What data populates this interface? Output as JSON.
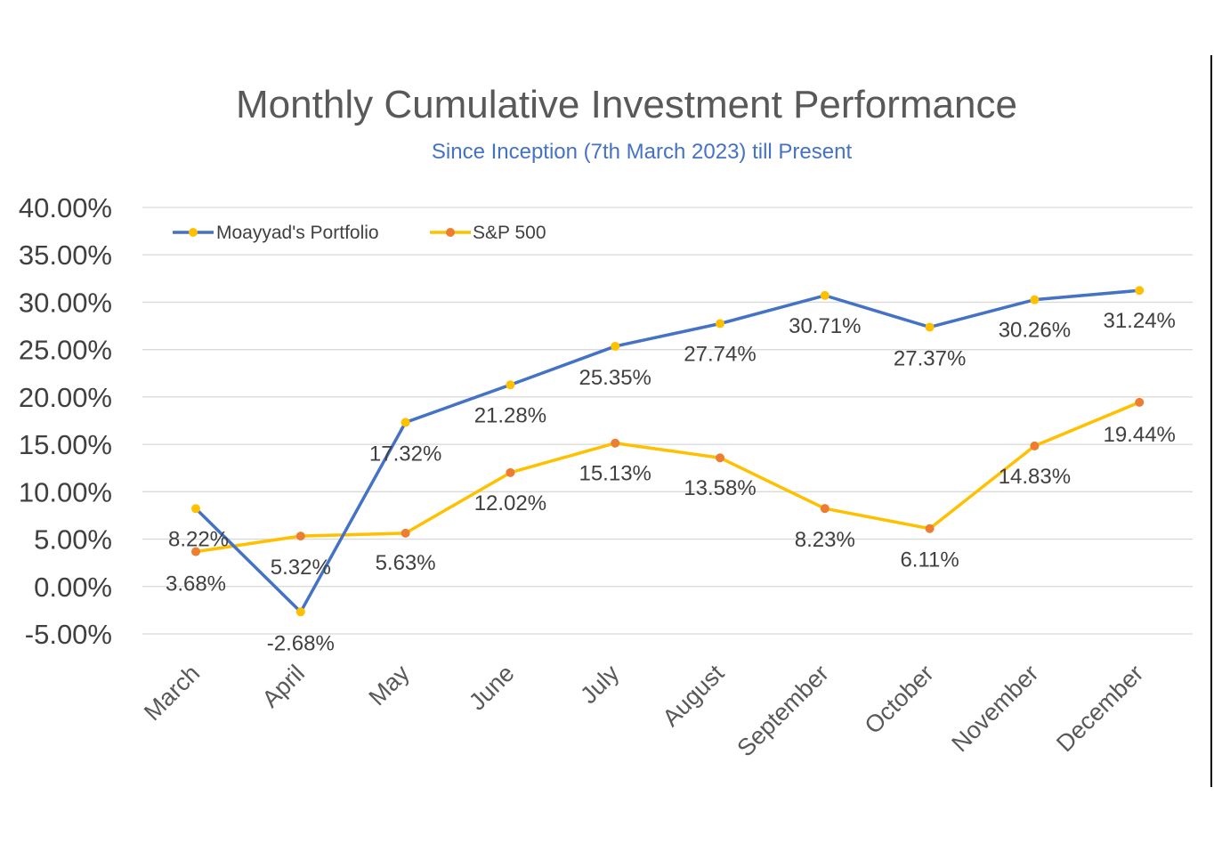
{
  "chart_data": {
    "type": "line",
    "title": "Monthly Cumulative Investment Performance",
    "subtitle": "Since Inception (7th March 2023) till Present",
    "categories": [
      "March",
      "April",
      "May",
      "June",
      "July",
      "August",
      "September",
      "October",
      "November",
      "December"
    ],
    "series": [
      {
        "name": "Moayyad's Portfolio",
        "values": [
          8.22,
          -2.68,
          17.32,
          21.28,
          25.35,
          27.74,
          30.71,
          27.37,
          30.26,
          31.24
        ],
        "labels": [
          "8.22%",
          "-2.68%",
          "17.32%",
          "21.28%",
          "25.35%",
          "27.74%",
          "30.71%",
          "27.37%",
          "30.26%",
          "31.24%"
        ],
        "line_color": "#4472C4",
        "marker_color": "#FFC000"
      },
      {
        "name": "S&P 500",
        "values": [
          3.68,
          5.32,
          5.63,
          12.02,
          15.13,
          13.58,
          8.23,
          6.11,
          14.83,
          19.44
        ],
        "labels": [
          "3.68%",
          "5.32%",
          "5.63%",
          "12.02%",
          "15.13%",
          "13.58%",
          "8.23%",
          "6.11%",
          "14.83%",
          "19.44%"
        ],
        "line_color": "#FFC000",
        "marker_color": "#ED7D31"
      }
    ],
    "ylim": [
      -5,
      40
    ],
    "yticks": [
      40,
      35,
      30,
      25,
      20,
      15,
      10,
      5,
      0,
      -5
    ],
    "ytick_labels": [
      "40.00%",
      "35.00%",
      "30.00%",
      "25.00%",
      "20.00%",
      "15.00%",
      "10.00%",
      "5.00%",
      "0.00%",
      "-5.00%"
    ],
    "xlabel": "",
    "ylabel": "",
    "grid": true,
    "legend_position": "top-left"
  },
  "colors": {
    "title": "#595959",
    "subtitle": "#4472C4",
    "grid": "#d9d9d9"
  }
}
